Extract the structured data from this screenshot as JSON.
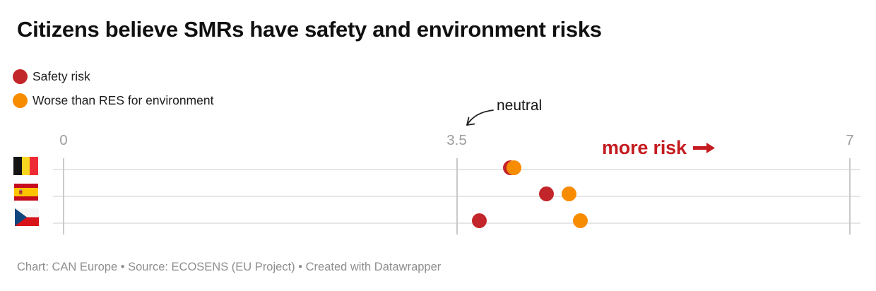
{
  "title": "Citizens believe SMRs have safety and environment risks",
  "legend": [
    {
      "label": "Safety risk",
      "color": "#c2262a",
      "icon": "red-dot"
    },
    {
      "label": "Worse than RES for environment",
      "color": "#f78c00",
      "icon": "orange-dot"
    }
  ],
  "annotations": {
    "neutral_label": "neutral",
    "neutral_points_to": 3.5,
    "more_risk_label": "more risk",
    "more_risk_icon": "right-arrow",
    "more_risk_color": "#c41b20"
  },
  "chart_data": {
    "type": "scatter",
    "subtype": "horizontal-dot-plot",
    "categories": [
      "Belgium",
      "Spain",
      "Czechia"
    ],
    "category_icons": [
      "flag-belgium",
      "flag-spain",
      "flag-czechia"
    ],
    "series": [
      {
        "name": "Safety risk",
        "color": "#c2262a",
        "values": [
          3.98,
          4.3,
          3.7
        ]
      },
      {
        "name": "Worse than RES for environment",
        "color": "#f78c00",
        "values": [
          4.01,
          4.5,
          4.6
        ]
      }
    ],
    "xlim": [
      0,
      7
    ],
    "x_ticks": [
      0,
      3.5,
      7
    ],
    "x_tick_labels": [
      "0",
      "3.5",
      "7"
    ],
    "grid": "horizontal-row-lines",
    "legend_position": "top-left"
  },
  "footer": "Chart: CAN Europe • Source: ECOSENS (EU Project) • Created with Datawrapper"
}
